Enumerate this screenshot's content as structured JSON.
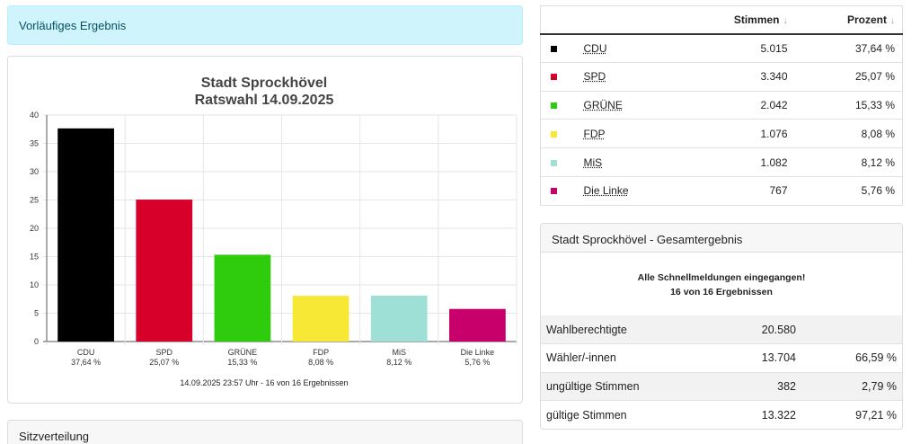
{
  "alert": {
    "text": "Vorläufiges Ergebnis"
  },
  "chart_data": {
    "type": "bar",
    "title": "Stadt Sprockhövel",
    "subtitle": "Ratswahl 14.09.2025",
    "categories": [
      "CDU",
      "SPD",
      "GRÜNE",
      "FDP",
      "MiS",
      "Die Linke"
    ],
    "values": [
      37.64,
      25.07,
      15.33,
      8.08,
      8.12,
      5.76
    ],
    "value_labels": [
      "37,64 %",
      "25,07 %",
      "15,33 %",
      "8,08 %",
      "8,12 %",
      "5,76 %"
    ],
    "colors": [
      "#000000",
      "#d6002b",
      "#2ecc0c",
      "#f8e836",
      "#9ee0d6",
      "#c8006b"
    ],
    "ylim": [
      0,
      40
    ],
    "yticks": [
      0,
      5,
      10,
      15,
      20,
      25,
      30,
      35,
      40
    ],
    "grid": true,
    "footer": "14.09.2025 23:57 Uhr - 16 von 16 Ergebnissen"
  },
  "sitzverteilung": {
    "title": "Sitzverteilung"
  },
  "results": {
    "headers": {
      "stimmen": "Stimmen",
      "prozent": "Prozent"
    },
    "rows": [
      {
        "party": "CDU",
        "color": "#000000",
        "stimmen": "5.015",
        "prozent": "37,64 %"
      },
      {
        "party": "SPD",
        "color": "#d6002b",
        "stimmen": "3.340",
        "prozent": "25,07 %"
      },
      {
        "party": "GRÜNE",
        "color": "#2ecc0c",
        "stimmen": "2.042",
        "prozent": "15,33 %"
      },
      {
        "party": "FDP",
        "color": "#f8e836",
        "stimmen": "1.076",
        "prozent": "8,08 %"
      },
      {
        "party": "MiS",
        "color": "#9ee0d6",
        "stimmen": "1.082",
        "prozent": "8,12 %"
      },
      {
        "party": "Die Linke",
        "color": "#c8006b",
        "stimmen": "767",
        "prozent": "5,76 %"
      }
    ]
  },
  "gesamt": {
    "title": "Stadt Sprockhövel - Gesamtergebnis",
    "message_line1": "Alle Schnellmeldungen eingegangen!",
    "message_line2": "16 von 16 Ergebnissen",
    "rows": [
      {
        "label": "Wahlberechtigte",
        "value": "20.580",
        "percent": ""
      },
      {
        "label": "Wähler/-innen",
        "value": "13.704",
        "percent": "66,59 %"
      },
      {
        "label": "ungültige Stimmen",
        "value": "382",
        "percent": "2,79 %"
      },
      {
        "label": "gültige Stimmen",
        "value": "13.322",
        "percent": "97,21 %"
      }
    ]
  }
}
